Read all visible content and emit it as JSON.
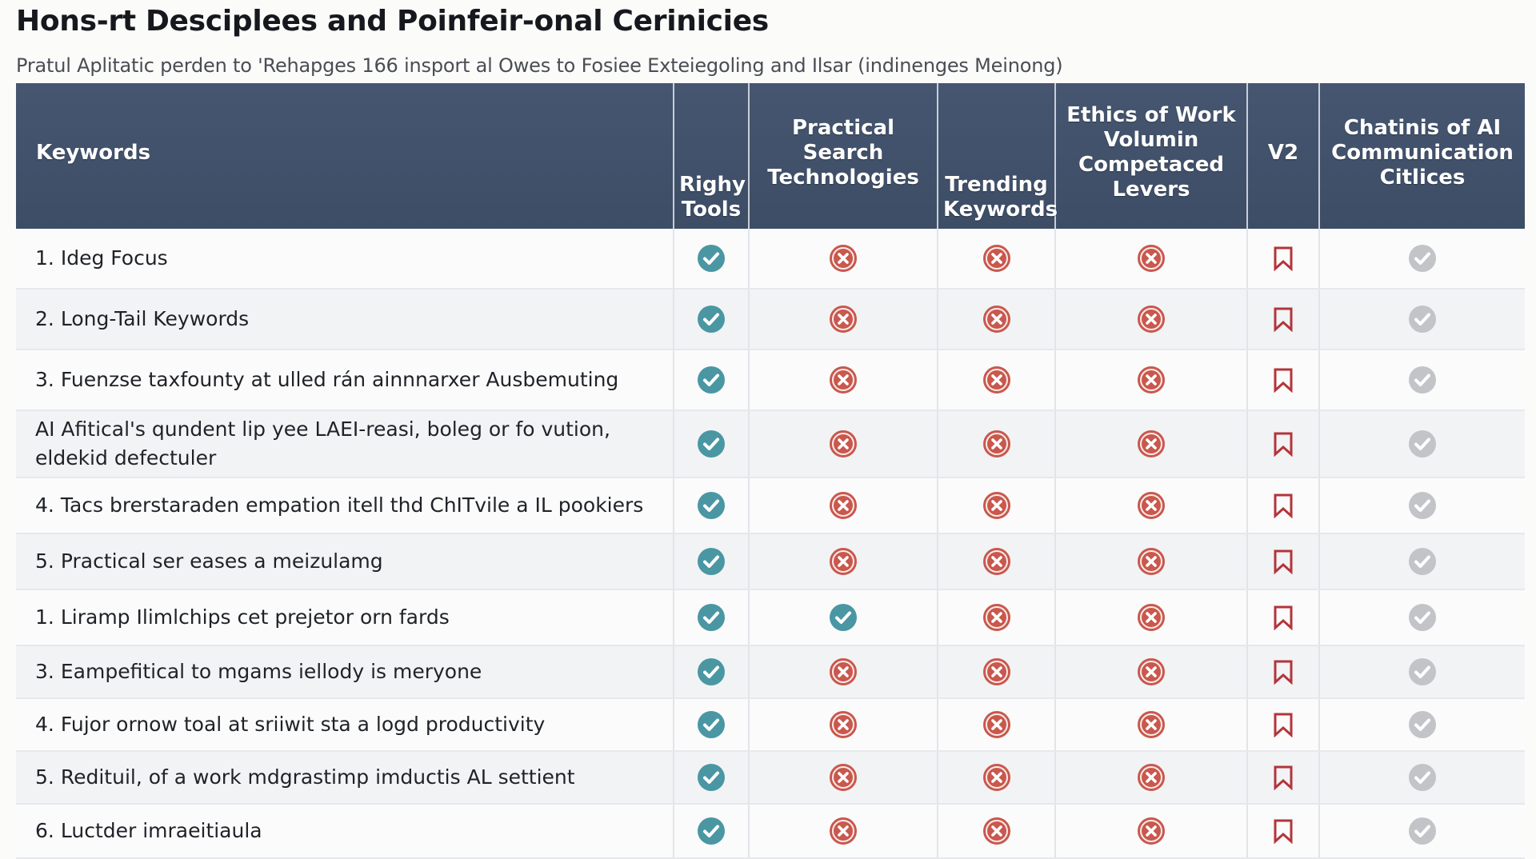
{
  "title": "Hons-rt Desciplees and Poinfeir-onal Cerinicies",
  "subtitle": "Pratul Aplitatic perden to 'Rehapges 166 insport al Owes to Fosiee Exteiegoling and Ilsar (indinenges Meinong)",
  "colors": {
    "header_bg": "#435370",
    "check": "#4a97a3",
    "cross": "#c9584d",
    "bookmark": "#b3353a",
    "neutral_check": "#c2c4c7"
  },
  "columns": [
    {
      "label": "Keywords"
    },
    {
      "label": "Righy Tools"
    },
    {
      "label": "Practical Search Technologies"
    },
    {
      "label": "Trending Keywords"
    },
    {
      "label": "Ethics of Work Volumin Competaced Levers"
    },
    {
      "label": "V2"
    },
    {
      "label": "Chatinis of AI Communication Citlices"
    }
  ],
  "rows": [
    {
      "num": "1.",
      "text": "Ideg Focus",
      "cells": [
        "check-icon",
        "cross-icon",
        "cross-icon",
        "cross-icon",
        "bookmark-icon",
        "neutral-check-icon"
      ]
    },
    {
      "num": "2.",
      "text": "Long-Tail Keywords",
      "cells": [
        "check-icon",
        "cross-icon",
        "cross-icon",
        "cross-icon",
        "bookmark-icon",
        "neutral-check-icon"
      ]
    },
    {
      "num": "3.",
      "text": "Fuenzse taxfounty at ulled rán ainnnarxer Ausbemuting",
      "cells": [
        "check-icon",
        "cross-icon",
        "cross-icon",
        "cross-icon",
        "bookmark-icon",
        "neutral-check-icon"
      ]
    },
    {
      "num": "",
      "text": "AI Afitical's qundent lip yee LAEI-reasi, boleg or fo vution, eldekid defectuler",
      "cells": [
        "check-icon",
        "cross-icon",
        "cross-icon",
        "cross-icon",
        "bookmark-icon",
        "neutral-check-icon"
      ]
    },
    {
      "num": "4.",
      "text": "Tacs brerstaraden empation itell thd ChITvile a IL pookiers",
      "cells": [
        "check-icon",
        "cross-icon",
        "cross-icon",
        "cross-icon",
        "bookmark-icon",
        "neutral-check-icon"
      ]
    },
    {
      "num": "5.",
      "text": "Practical ser eases a meizulamg",
      "cells": [
        "check-icon",
        "cross-icon",
        "cross-icon",
        "cross-icon",
        "bookmark-icon",
        "neutral-check-icon"
      ]
    },
    {
      "num": "1.",
      "text": "Liramp Ilimlchips cet prejetor orn fards",
      "cells": [
        "check-icon",
        "check-icon",
        "cross-icon",
        "cross-icon",
        "bookmark-icon",
        "neutral-check-icon"
      ]
    },
    {
      "num": "3.",
      "text": "Eampefitical to mgams iellody is meryone",
      "cells": [
        "check-icon",
        "cross-icon",
        "cross-icon",
        "cross-icon",
        "bookmark-icon",
        "neutral-check-icon"
      ]
    },
    {
      "num": "4.",
      "text": "Fujor ornow toal at sriiwit sta a logd productivity",
      "cells": [
        "check-icon",
        "cross-icon",
        "cross-icon",
        "cross-icon",
        "bookmark-icon",
        "neutral-check-icon"
      ]
    },
    {
      "num": "5.",
      "text": "Redituil, of a work mdgrastimp imductis AL settient",
      "cells": [
        "check-icon",
        "cross-icon",
        "cross-icon",
        "cross-icon",
        "bookmark-icon",
        "neutral-check-icon"
      ]
    },
    {
      "num": "6.",
      "text": "Luctder imraeitiaula",
      "cells": [
        "check-icon",
        "cross-icon",
        "cross-icon",
        "cross-icon",
        "bookmark-icon",
        "neutral-check-icon"
      ]
    }
  ]
}
